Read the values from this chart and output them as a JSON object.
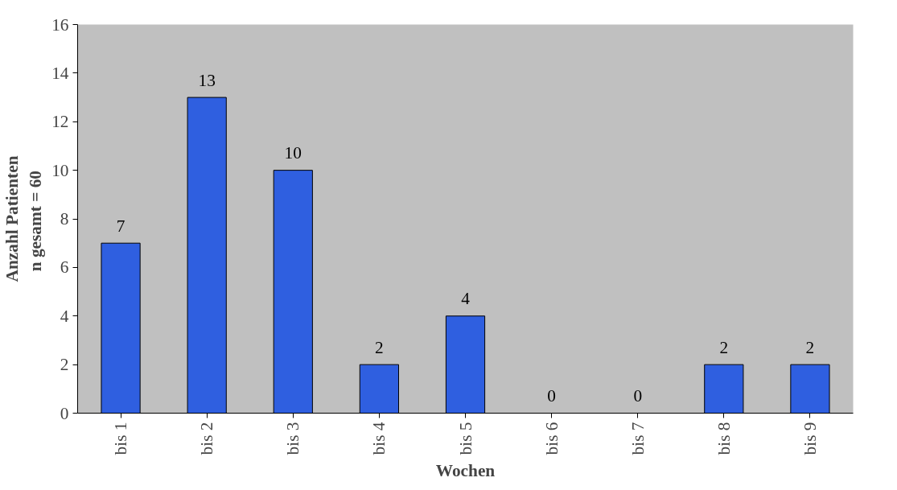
{
  "chart_data": {
    "type": "bar",
    "xlabel": "Wochen",
    "ylabel": "Anzahl Patienten\nn  gesamt = 60",
    "categories": [
      "bis 1",
      "bis 2",
      "bis 3",
      "bis 4",
      "bis 5",
      "bis 6",
      "bis 7",
      "bis 8",
      "bis 9"
    ],
    "values": [
      7,
      13,
      10,
      2,
      4,
      0,
      0,
      2,
      2
    ],
    "color": "#2f5fe0",
    "ylim": [
      0,
      16
    ],
    "yticks": [
      0,
      2,
      4,
      6,
      8,
      10,
      12,
      14,
      16
    ],
    "data_labels": true
  }
}
